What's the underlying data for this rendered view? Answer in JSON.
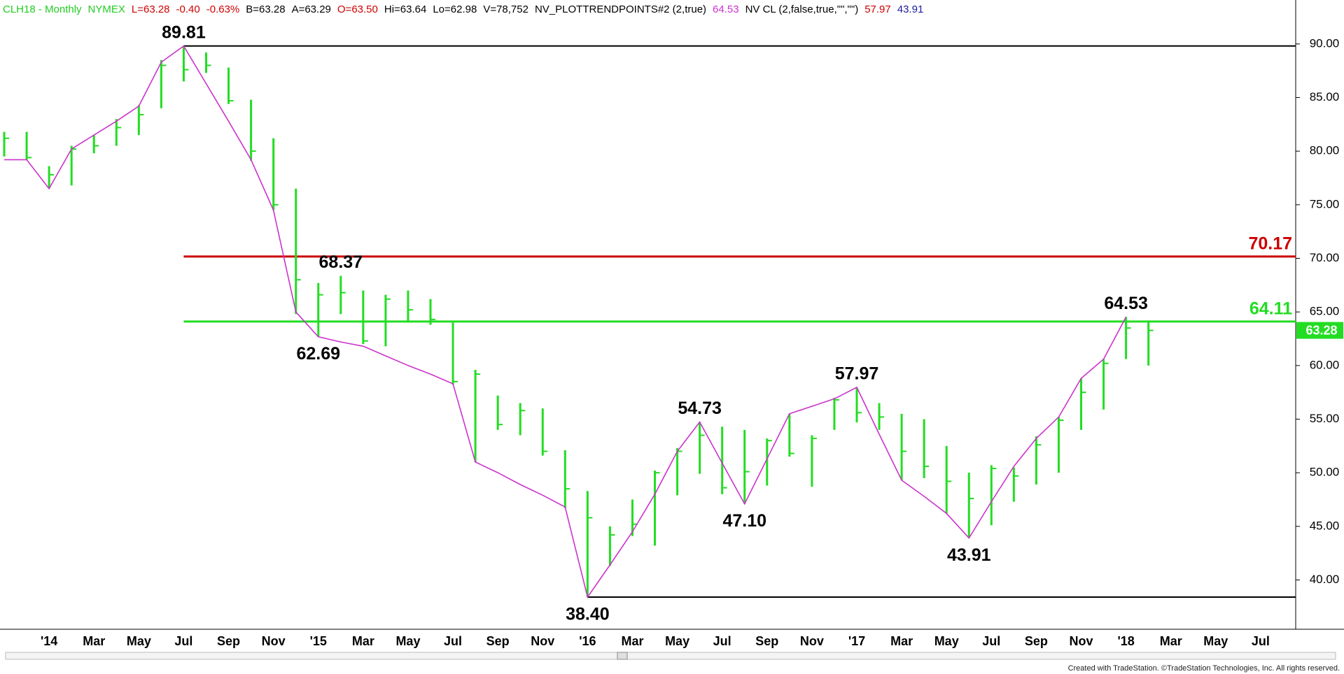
{
  "chart_data": {
    "type": "ohlc",
    "header": [
      {
        "text": "CLH18 - Monthly",
        "color": "#22cc22"
      },
      {
        "text": "NYMEX",
        "color": "#22cc22"
      },
      {
        "text": "L=63.28",
        "color": "#cc0000"
      },
      {
        "text": "-0.40",
        "color": "#cc0000"
      },
      {
        "text": "-0.63%",
        "color": "#cc0000"
      },
      {
        "text": "B=63.28",
        "color": "#000000"
      },
      {
        "text": "A=63.29",
        "color": "#000000"
      },
      {
        "text": "O=63.50",
        "color": "#cc0000"
      },
      {
        "text": "Hi=63.64",
        "color": "#000000"
      },
      {
        "text": "Lo=62.98",
        "color": "#000000"
      },
      {
        "text": "V=78,752",
        "color": "#000000"
      },
      {
        "text": "NV_PLOTTRENDPOINTS#2 (2,true)",
        "color": "#000000"
      },
      {
        "text": "64.53",
        "color": "#cc33cc"
      },
      {
        "text": "NV CL (2,false,true,\"\",\"\")",
        "color": "#000000"
      },
      {
        "text": "57.97",
        "color": "#cc0000"
      },
      {
        "text": "43.91",
        "color": "#1a1aa0"
      }
    ],
    "categories": [
      null,
      null,
      "'14",
      null,
      "Mar",
      null,
      "May",
      null,
      "Jul",
      null,
      "Sep",
      null,
      "Nov",
      null,
      "'15",
      null,
      "Mar",
      null,
      "May",
      null,
      "Jul",
      null,
      "Sep",
      null,
      "Nov",
      null,
      "'16",
      null,
      "Mar",
      null,
      "May",
      null,
      "Jul",
      null,
      "Sep",
      null,
      "Nov",
      null,
      "'17",
      null,
      "Mar",
      null,
      "May",
      null,
      "Jul",
      null,
      "Sep",
      null,
      "Nov",
      null,
      "'18",
      null,
      "Mar",
      null,
      "May",
      null,
      "Jul",
      null
    ],
    "bars": {
      "color": "#22dd22",
      "high": [
        81.8,
        81.8,
        78.6,
        80.5,
        81.5,
        83,
        84.3,
        88.5,
        89.81,
        89.2,
        87.8,
        84.8,
        81.2,
        76.5,
        67.7,
        68.37,
        67,
        66.6,
        67,
        66.2,
        64,
        59.6,
        57.2,
        56.5,
        56,
        52.1,
        48.3,
        45,
        47.5,
        50.2,
        52.3,
        54.73,
        54.3,
        54,
        53.2,
        55.5,
        53.5,
        57,
        57.97,
        56.5,
        55.5,
        55,
        52.5,
        50,
        50.7,
        50.5,
        53.4,
        55.2,
        58.8,
        60.6,
        64.53,
        64.2,
        null,
        null,
        null,
        null,
        null,
        null
      ],
      "low": [
        79.5,
        79.2,
        76.5,
        76.8,
        79.8,
        80.5,
        81.5,
        84,
        86.5,
        87.3,
        84.4,
        79.1,
        74.5,
        64.8,
        62.69,
        64.8,
        62,
        61.8,
        64,
        63.8,
        58.2,
        51,
        54,
        53.5,
        51.6,
        46.7,
        38.4,
        41.3,
        44.1,
        43.2,
        47.9,
        49.9,
        48,
        47.1,
        48.8,
        51.5,
        48.7,
        54,
        54.7,
        54,
        49.3,
        49.5,
        46.2,
        43.91,
        45.1,
        47.3,
        48.9,
        50,
        54,
        55.9,
        60.6,
        60,
        null,
        null,
        null,
        null,
        null,
        null
      ],
      "close": [
        81.2,
        79.4,
        77.8,
        80.2,
        80.5,
        82.2,
        83.4,
        88,
        87.6,
        88,
        84.7,
        80,
        75,
        68,
        66.6,
        66.8,
        62.3,
        66.2,
        65.2,
        64.3,
        58.5,
        59.2,
        54.5,
        55.8,
        52,
        48.5,
        45.8,
        44.2,
        45.2,
        50,
        52,
        53.5,
        48.6,
        50.1,
        53,
        51.8,
        53.2,
        56.8,
        55.6,
        55.2,
        52,
        50.6,
        49.2,
        47.6,
        50.4,
        49.7,
        52.6,
        54.9,
        57.5,
        60.2,
        63.5,
        63.28,
        null,
        null,
        null,
        null,
        null,
        null
      ]
    },
    "trend": {
      "color": "#cc33cc",
      "values": [
        79.2,
        79.2,
        76.5,
        80.2,
        81.5,
        82.8,
        84.2,
        88.3,
        89.81,
        86.3,
        82.8,
        79.2,
        74.5,
        65,
        62.69,
        62.2,
        61.8,
        60.9,
        60,
        59.2,
        58.3,
        51,
        50,
        48.9,
        47.9,
        46.8,
        38.4,
        41.4,
        44.5,
        48,
        52,
        54.73,
        50.9,
        47.1,
        51.3,
        55.5,
        56.2,
        56.9,
        57.97,
        53.6,
        49.3,
        47.8,
        46.2,
        43.91,
        47.3,
        50.6,
        53.2,
        55.2,
        58.8,
        60.6,
        64.53,
        null,
        null,
        null,
        null,
        null,
        null,
        null
      ]
    },
    "pivots": {
      "values": [
        null,
        null,
        null,
        null,
        null,
        null,
        null,
        null,
        89.81,
        null,
        null,
        null,
        null,
        null,
        62.69,
        68.37,
        null,
        null,
        null,
        null,
        null,
        null,
        null,
        null,
        null,
        null,
        38.4,
        null,
        null,
        null,
        null,
        54.73,
        null,
        47.1,
        null,
        null,
        null,
        null,
        57.97,
        null,
        null,
        null,
        null,
        43.91,
        null,
        null,
        null,
        null,
        null,
        null,
        64.53,
        null,
        null,
        null,
        null,
        null,
        null,
        null
      ],
      "value_labels": [
        null,
        null,
        null,
        null,
        null,
        null,
        null,
        null,
        "89.81",
        null,
        null,
        null,
        null,
        null,
        "62.69",
        "68.37",
        null,
        null,
        null,
        null,
        null,
        null,
        null,
        null,
        null,
        null,
        "38.40",
        null,
        null,
        null,
        null,
        "54.73",
        null,
        "47.10",
        null,
        null,
        null,
        null,
        "57.97",
        null,
        null,
        null,
        null,
        "43.91",
        null,
        null,
        null,
        null,
        null,
        null,
        "64.53",
        null,
        null,
        null,
        null,
        null,
        null,
        null
      ],
      "side": [
        null,
        null,
        null,
        null,
        null,
        null,
        null,
        null,
        "above",
        null,
        null,
        null,
        null,
        null,
        "below",
        "above",
        null,
        null,
        null,
        null,
        null,
        null,
        null,
        null,
        null,
        null,
        "below",
        null,
        null,
        null,
        null,
        "above",
        null,
        "below",
        null,
        null,
        null,
        null,
        "above",
        null,
        null,
        null,
        null,
        "below",
        null,
        null,
        null,
        null,
        null,
        null,
        "above",
        null,
        null,
        null,
        null,
        null,
        null,
        null
      ]
    },
    "levels": [
      {
        "value": 89.81,
        "color": "#000000"
      },
      {
        "value": 38.4,
        "color": "#000000"
      },
      {
        "value": 70.17,
        "color": "#cc0000",
        "label": "70.17"
      },
      {
        "value": 64.11,
        "color": "#22dd22",
        "label": "64.11"
      }
    ],
    "last_price": 63.28,
    "last_price_color": "#22dd22",
    "ylim": [
      35.4,
      94.1
    ],
    "yticks": [
      {
        "value": 40,
        "label": "40.00"
      },
      {
        "value": 45,
        "label": "45.00"
      },
      {
        "value": 50,
        "label": "50.00"
      },
      {
        "value": 55,
        "label": "55.00"
      },
      {
        "value": 60,
        "label": "60.00"
      },
      {
        "value": 65,
        "label": "65.00"
      },
      {
        "value": 70,
        "label": "70.00"
      },
      {
        "value": 75,
        "label": "75.00"
      },
      {
        "value": 80,
        "label": "80.00"
      },
      {
        "value": 85,
        "label": "85.00"
      },
      {
        "value": 90,
        "label": "90.00"
      }
    ],
    "footer": "Created with TradeStation. ©TradeStation Technologies, Inc. All rights reserved."
  }
}
